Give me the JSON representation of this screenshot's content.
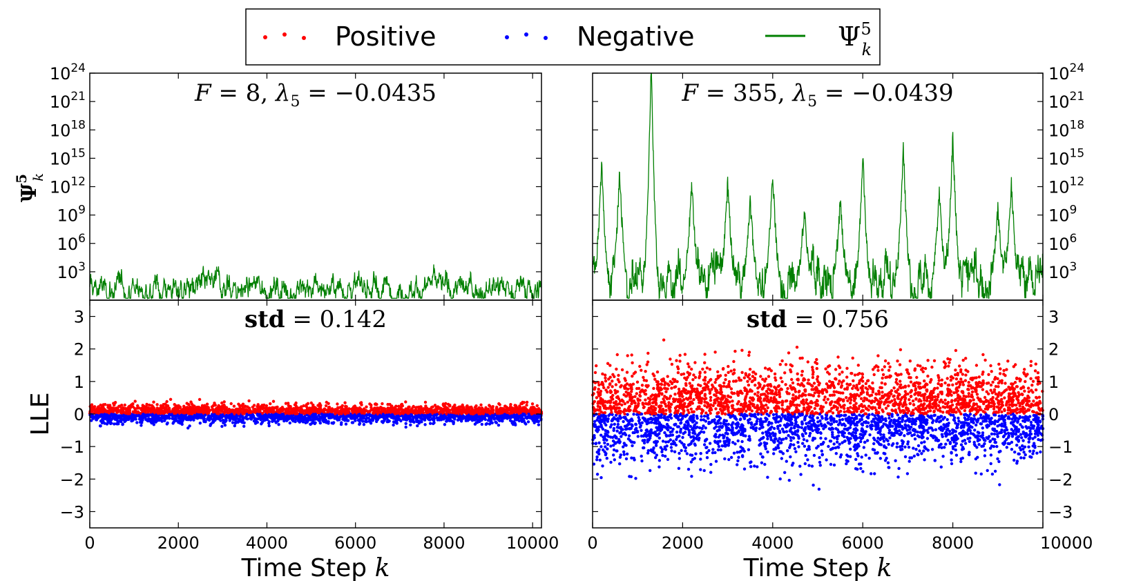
{
  "legend": {
    "items": [
      {
        "label": "Positive",
        "color": "#ff0000",
        "marker": "dots"
      },
      {
        "label": "Negative",
        "color": "#0000ff",
        "marker": "dots"
      },
      {
        "label": "Ψ",
        "sup": "5",
        "sub": "k",
        "color": "#007f00",
        "marker": "line"
      }
    ]
  },
  "chart_data": [
    {
      "type": "line",
      "panel": "top-left",
      "series_name": "Ψ_k^5",
      "color": "#007f00",
      "y_scale": "log",
      "ylim_exp": [
        0,
        24
      ],
      "xlim": [
        0,
        10200
      ],
      "ytick_exps": [
        3,
        6,
        9,
        12,
        15,
        18,
        21,
        24
      ],
      "ylabel": {
        "base": "Ψ",
        "sup": "5",
        "sub": "k"
      },
      "title": {
        "F": "8",
        "lambda_sub": "5",
        "lambda_value": "−0.0435"
      },
      "log10_profile": {
        "baseline": 1.2,
        "noise": 1.0,
        "peaks": []
      }
    },
    {
      "type": "line",
      "panel": "top-right",
      "series_name": "Ψ_k^5",
      "color": "#007f00",
      "y_scale": "log",
      "ylim_exp": [
        0,
        24
      ],
      "xlim": [
        0,
        10000
      ],
      "ytick_exps": [
        3,
        6,
        9,
        12,
        15,
        18,
        21,
        24
      ],
      "title": {
        "F": "355",
        "lambda_sub": "5",
        "lambda_value": "−0.0439"
      },
      "log10_profile": {
        "baseline": 2.5,
        "noise": 2.0,
        "peaks": [
          {
            "x": 200,
            "log10": 13
          },
          {
            "x": 600,
            "log10": 12
          },
          {
            "x": 1300,
            "log10": 24
          },
          {
            "x": 2200,
            "log10": 11
          },
          {
            "x": 3000,
            "log10": 11
          },
          {
            "x": 3500,
            "log10": 9
          },
          {
            "x": 4000,
            "log10": 12
          },
          {
            "x": 4700,
            "log10": 8
          },
          {
            "x": 5500,
            "log10": 9
          },
          {
            "x": 6000,
            "log10": 14
          },
          {
            "x": 6900,
            "log10": 15
          },
          {
            "x": 7700,
            "log10": 10
          },
          {
            "x": 8000,
            "log10": 16
          },
          {
            "x": 9000,
            "log10": 8
          },
          {
            "x": 9300,
            "log10": 11
          }
        ]
      }
    },
    {
      "type": "scatter",
      "panel": "bottom-left",
      "ylabel": "LLE",
      "xlabel": {
        "text": "Time Step",
        "var": "k"
      },
      "xlim": [
        0,
        10200
      ],
      "ylim": [
        -3.5,
        3.5
      ],
      "xticks": [
        0,
        2000,
        4000,
        6000,
        8000,
        10000
      ],
      "xtick_labels": [
        "0",
        "2000",
        "4000",
        "6000",
        "8000",
        "10000"
      ],
      "yticks": [
        3,
        2,
        1,
        0,
        -1,
        -2,
        -3
      ],
      "ytick_labels": [
        "3",
        "2",
        "1",
        "0",
        "−1",
        "−2",
        "−3"
      ],
      "title": {
        "bold": "std",
        "value": "0.142"
      },
      "std": 0.142,
      "series": [
        {
          "name": "Positive",
          "color": "#ff0000"
        },
        {
          "name": "Negative",
          "color": "#0000ff"
        }
      ]
    },
    {
      "type": "scatter",
      "panel": "bottom-right",
      "xlabel": {
        "text": "Time Step",
        "var": "k"
      },
      "xlim": [
        0,
        10000
      ],
      "ylim": [
        -3.5,
        3.5
      ],
      "xticks": [
        0,
        2000,
        4000,
        6000,
        8000,
        10000
      ],
      "xtick_labels": [
        "0",
        "2000",
        "4000",
        "6000",
        "8000",
        "10000"
      ],
      "yticks": [
        3,
        2,
        1,
        0,
        -1,
        -2,
        -3
      ],
      "ytick_labels": [
        "3",
        "2",
        "1",
        "0",
        "−1",
        "−2",
        "−3"
      ],
      "title": {
        "bold": "std",
        "value": "0.756"
      },
      "std": 0.756,
      "series": [
        {
          "name": "Positive",
          "color": "#ff0000"
        },
        {
          "name": "Negative",
          "color": "#0000ff"
        }
      ]
    }
  ]
}
